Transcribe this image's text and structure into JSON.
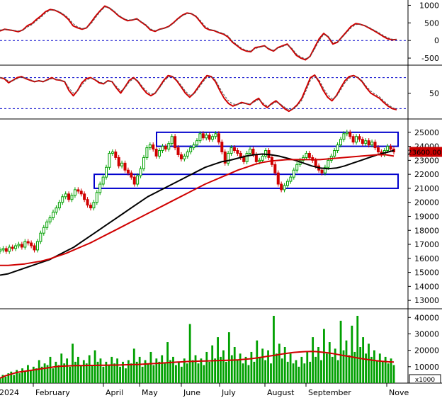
{
  "chart_data": [
    {
      "type": "line",
      "panel": "oscillator-1",
      "ylim": [
        -700,
        1150
      ],
      "y_ticks": [
        "1000",
        "500",
        "0",
        "-500"
      ],
      "reference_lines": [
        0
      ],
      "series": [
        {
          "color": "#d00000",
          "style": "solid",
          "values": [
            270,
            320,
            300,
            280,
            250,
            300,
            420,
            480,
            600,
            700,
            820,
            880,
            860,
            800,
            720,
            600,
            420,
            360,
            320,
            360,
            520,
            700,
            850,
            980,
            920,
            820,
            700,
            620,
            560,
            580,
            620,
            520,
            430,
            300,
            260,
            320,
            350,
            400,
            500,
            620,
            720,
            780,
            760,
            680,
            520,
            360,
            300,
            280,
            220,
            180,
            100,
            -50,
            -150,
            -250,
            -300,
            -320,
            -200,
            -180,
            -150,
            -250,
            -300,
            -200,
            -150,
            -100,
            -250,
            -420,
            -500,
            -550,
            -450,
            -200,
            50,
            200,
            100,
            -100,
            -50,
            100,
            250,
            400,
            480,
            460,
            420,
            350,
            280,
            200,
            120,
            50,
            20,
            30
          ]
        },
        {
          "color": "#555555",
          "style": "dashed",
          "values": [
            300,
            310,
            310,
            290,
            270,
            290,
            380,
            450,
            560,
            660,
            780,
            860,
            870,
            820,
            740,
            640,
            480,
            390,
            340,
            360,
            480,
            660,
            820,
            950,
            930,
            840,
            720,
            640,
            580,
            590,
            610,
            540,
            450,
            330,
            280,
            310,
            340,
            390,
            480,
            600,
            700,
            760,
            760,
            700,
            560,
            400,
            320,
            290,
            240,
            200,
            130,
            -20,
            -120,
            -220,
            -280,
            -300,
            -230,
            -190,
            -160,
            -230,
            -280,
            -220,
            -170,
            -120,
            -220,
            -380,
            -470,
            -520,
            -460,
            -250,
            0,
            170,
            120,
            -60,
            -40,
            80,
            220,
            360,
            450,
            460,
            430,
            370,
            300,
            230,
            150,
            80,
            40,
            20
          ]
        }
      ]
    },
    {
      "type": "line",
      "panel": "oscillator-2",
      "ylim": [
        0,
        100
      ],
      "y_ticks": [
        "50"
      ],
      "reference_lines": [
        80,
        20
      ],
      "series": [
        {
          "color": "#d00000",
          "style": "solid",
          "values": [
            80,
            78,
            70,
            75,
            80,
            82,
            78,
            75,
            72,
            74,
            72,
            76,
            80,
            76,
            75,
            72,
            55,
            45,
            55,
            70,
            78,
            80,
            76,
            70,
            68,
            74,
            72,
            60,
            50,
            62,
            75,
            80,
            72,
            60,
            50,
            45,
            50,
            62,
            75,
            84,
            82,
            74,
            62,
            50,
            42,
            50,
            62,
            74,
            84,
            82,
            72,
            55,
            40,
            30,
            25,
            28,
            32,
            30,
            28,
            35,
            40,
            28,
            22,
            30,
            35,
            28,
            20,
            15,
            20,
            28,
            40,
            60,
            80,
            85,
            72,
            55,
            42,
            35,
            45,
            60,
            74,
            82,
            84,
            80,
            72,
            60,
            50,
            45,
            40,
            32,
            25,
            20,
            18
          ]
        },
        {
          "color": "#555555",
          "style": "dashed",
          "values": [
            80,
            79,
            73,
            74,
            78,
            81,
            79,
            76,
            73,
            74,
            73,
            75,
            78,
            77,
            75,
            73,
            60,
            50,
            54,
            66,
            75,
            79,
            77,
            72,
            69,
            73,
            72,
            63,
            54,
            60,
            72,
            78,
            74,
            63,
            54,
            48,
            50,
            60,
            72,
            81,
            82,
            76,
            65,
            54,
            46,
            48,
            59,
            71,
            81,
            82,
            75,
            60,
            46,
            35,
            29,
            28,
            30,
            30,
            29,
            33,
            38,
            31,
            25,
            28,
            33,
            29,
            23,
            18,
            19,
            26,
            36,
            55,
            75,
            83,
            76,
            60,
            47,
            39,
            43,
            56,
            70,
            79,
            83,
            81,
            74,
            63,
            54,
            48,
            43,
            35,
            28,
            22,
            19
          ]
        }
      ]
    },
    {
      "type": "candlestick",
      "panel": "price",
      "ylim": [
        12400,
        25800
      ],
      "y_ticks": [
        "25000",
        "24000",
        "23000",
        "22000",
        "21000",
        "20000",
        "19000",
        "18000",
        "17000",
        "16000",
        "15000",
        "14000",
        "13000"
      ],
      "last_price_label": "23600.00",
      "closes": [
        16600,
        16700,
        16500,
        16800,
        16700,
        16900,
        17000,
        16800,
        17200,
        17100,
        16900,
        16600,
        17200,
        17800,
        18200,
        18600,
        18900,
        19300,
        19600,
        20000,
        20400,
        20600,
        20200,
        20500,
        20900,
        20800,
        20600,
        20200,
        19800,
        19600,
        20000,
        20700,
        21300,
        21800,
        22500,
        23500,
        23600,
        23200,
        22600,
        22800,
        22300,
        22100,
        21800,
        21300,
        21900,
        22400,
        23200,
        23900,
        24100,
        23800,
        23300,
        23700,
        24000,
        23800,
        24200,
        24700,
        23900,
        23400,
        23100,
        23300,
        23600,
        23900,
        24100,
        24400,
        24900,
        24600,
        24800,
        24500,
        24700,
        24900,
        24300,
        23600,
        22800,
        23500,
        23900,
        23700,
        23500,
        23200,
        22900,
        23500,
        23800,
        23400,
        22900,
        23000,
        23300,
        23700,
        23200,
        22700,
        22100,
        21300,
        20900,
        21200,
        21500,
        21800,
        22300,
        22700,
        23000,
        23200,
        23500,
        23200,
        23000,
        22600,
        22300,
        22100,
        22500,
        23000,
        23300,
        23700,
        24100,
        24500,
        24900,
        25000,
        24700,
        24300,
        24700,
        24500,
        24200,
        24400,
        24100,
        24300,
        23900,
        23600,
        23400,
        23700,
        24000,
        23800,
        23600
      ],
      "overlays": [
        {
          "name": "MA50",
          "color": "#000000",
          "values": [
            14800,
            14900,
            15100,
            15300,
            15500,
            15700,
            15900,
            16200,
            16500,
            16800,
            17200,
            17600,
            18000,
            18400,
            18800,
            19200,
            19600,
            20000,
            20400,
            20700,
            21000,
            21300,
            21600,
            21900,
            22200,
            22500,
            22700,
            22900,
            23000,
            23150,
            23300,
            23400,
            23450,
            23400,
            23300,
            23150,
            23000,
            22800,
            22600,
            22450,
            22400,
            22450,
            22600,
            22800,
            23000,
            23200,
            23400,
            23550,
            23700
          ]
        },
        {
          "name": "MA200",
          "color": "#d00000",
          "values": [
            15500,
            15500,
            15550,
            15600,
            15700,
            15800,
            15950,
            16150,
            16350,
            16600,
            16850,
            17100,
            17400,
            17700,
            18000,
            18300,
            18600,
            18900,
            19200,
            19500,
            19800,
            20100,
            20400,
            20700,
            21000,
            21300,
            21550,
            21800,
            22050,
            22300,
            22500,
            22700,
            22850,
            22950,
            23000,
            23050,
            23050,
            23050,
            23050,
            23050,
            23100,
            23150,
            23200,
            23250,
            23300,
            23350,
            23400,
            23400,
            23300
          ]
        }
      ],
      "zones": [
        {
          "low": 24000,
          "high": 25000
        },
        {
          "low": 21000,
          "high": 22000
        }
      ]
    },
    {
      "type": "bar",
      "panel": "volume",
      "ylim": [
        0,
        44000
      ],
      "y_ticks": [
        "40000",
        "30000",
        "20000",
        "10000"
      ],
      "unit_label": "x1000",
      "x_labels": [
        "2024",
        "February",
        "April",
        "May",
        "June",
        "July",
        "August",
        "September",
        "Nove"
      ],
      "values": [
        3000,
        5000,
        4000,
        6000,
        7000,
        5000,
        8000,
        6000,
        9000,
        7000,
        11000,
        8000,
        10000,
        9000,
        14000,
        10000,
        12000,
        11000,
        16000,
        9000,
        13000,
        11000,
        18000,
        12000,
        15000,
        10000,
        24000,
        13000,
        16000,
        11000,
        14000,
        12000,
        17000,
        11000,
        20000,
        13000,
        15000,
        10000,
        13000,
        11000,
        16000,
        12000,
        15000,
        10000,
        13000,
        9000,
        14000,
        12000,
        21000,
        13000,
        16000,
        10000,
        14000,
        12000,
        19000,
        11000,
        15000,
        13000,
        17000,
        12000,
        25000,
        14000,
        16000,
        11000,
        13000,
        10000,
        15000,
        12000,
        36000,
        14000,
        17000,
        12000,
        15000,
        11000,
        19000,
        13000,
        23000,
        15000,
        28000,
        16000,
        20000,
        13000,
        31000,
        17000,
        22000,
        14000,
        18000,
        12000,
        16000,
        11000,
        19000,
        13000,
        26000,
        16000,
        21000,
        14000,
        20000,
        12000,
        41000,
        18000,
        24000,
        15000,
        22000,
        13000,
        18000,
        12000,
        14000,
        10000,
        16000,
        12000,
        19000,
        13000,
        28000,
        16000,
        22000,
        14000,
        33000,
        18000,
        25000,
        16000,
        21000,
        14000,
        38000,
        20000,
        26000,
        17000,
        35000,
        19000,
        41000,
        22000,
        28000,
        18000,
        24000,
        16000,
        20000,
        14000,
        18000,
        13000,
        16000,
        12000,
        15000,
        11000
      ],
      "overlays": [
        {
          "name": "volume-average",
          "color": "#d00000",
          "values": [
            3000,
            4500,
            5500,
            6500,
            7000,
            7500,
            8000,
            8500,
            9000,
            9500,
            10000,
            10300,
            10500,
            10600,
            10700,
            10700,
            10800,
            10800,
            10900,
            10900,
            11000,
            11000,
            11100,
            11200,
            11300,
            11400,
            11600,
            11800,
            12000,
            12200,
            12400,
            12600,
            12800,
            13000,
            13200,
            13300,
            13400,
            13500,
            13600,
            13700,
            13800,
            13900,
            14000,
            14200,
            14500,
            14800,
            15200,
            15700,
            16200,
            16700,
            17200,
            17800,
            18300,
            18700,
            19000,
            19200,
            19300,
            19200,
            18900,
            18500,
            18000,
            17400,
            16800,
            16200,
            15600,
            15000,
            14500,
            14000,
            13600,
            13300,
            13000,
            12800
          ]
        }
      ]
    }
  ]
}
